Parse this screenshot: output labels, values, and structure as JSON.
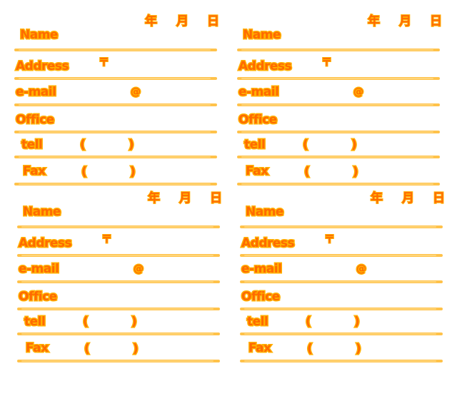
{
  "form": {
    "date_year": "年",
    "date_month": "月",
    "date_day": "日",
    "name_label": "Name",
    "address_label": "Address",
    "postal_mark": "〒",
    "email_label": "e-mail",
    "at_mark": "@",
    "office_label": "Office",
    "tel_label": "tell",
    "fax_label": "Fax",
    "paren_open": "(",
    "paren_close": ")"
  },
  "colors": {
    "text_fill": "#ff6a00",
    "text_outline": "#ffb000",
    "rule_line": "#ffc24a"
  },
  "card_count": 4
}
